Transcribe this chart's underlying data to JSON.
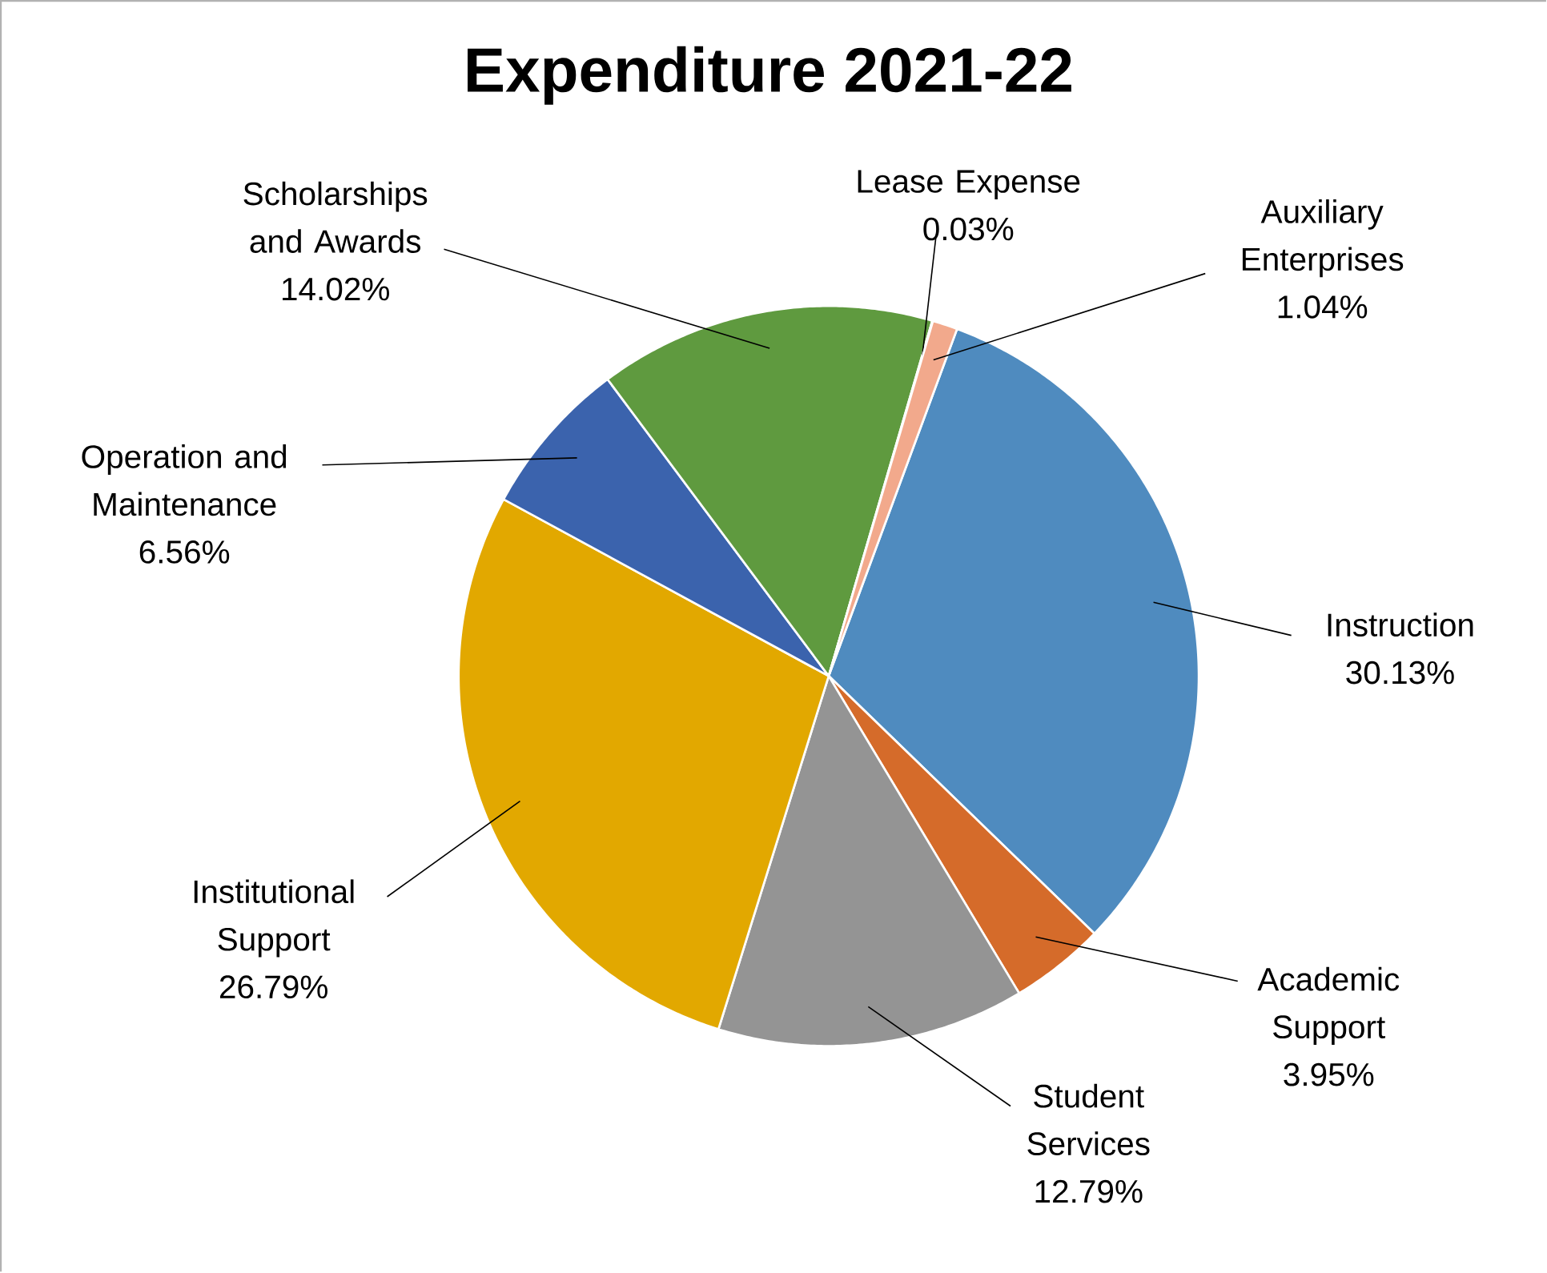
{
  "chart_data": {
    "type": "pie",
    "title": "Expenditure 2021-22",
    "categories": [
      "Instruction",
      "Academic Support",
      "Student Services",
      "Institutional Support",
      "Operation and Maintenance",
      "Scholarships and Awards",
      "Lease Expense",
      "Auxiliary Enterprises"
    ],
    "values": [
      30.13,
      3.95,
      12.79,
      26.79,
      6.56,
      14.02,
      0.03,
      1.04
    ],
    "value_labels": [
      "30.13%",
      "3.95%",
      "12.79%",
      "26.79%",
      "6.56%",
      "14.02%",
      "0.03%",
      "1.04%"
    ],
    "colors": [
      "#4f8bbf",
      "#d56b2a",
      "#949494",
      "#e2a800",
      "#3b63ad",
      "#5f9a3f",
      "#f2a98c",
      "#f2a98c"
    ]
  }
}
